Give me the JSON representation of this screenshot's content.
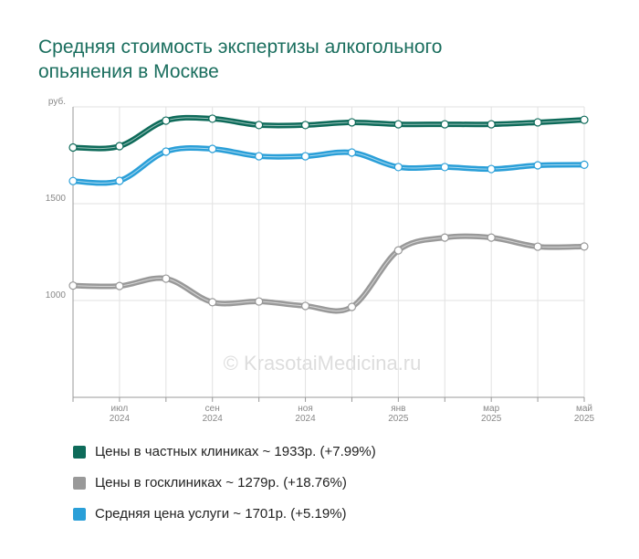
{
  "chart_data": {
    "type": "line",
    "title": "Средняя стоимость экспертизы алкогольного опьянения в Москве",
    "watermark": "© KrasotaiMedicina.ru",
    "categories": [
      null,
      [
        "июл",
        "2024"
      ],
      null,
      [
        "сен",
        "2024"
      ],
      null,
      [
        "ноя",
        "2024"
      ],
      null,
      [
        "янв",
        "2025"
      ],
      null,
      [
        "мар",
        "2025"
      ],
      null,
      [
        "май",
        "2025"
      ]
    ],
    "ylim": [
      500,
      2000
    ],
    "yticks": [
      1000,
      1500,
      {
        "value": 2000,
        "label": "руб."
      }
    ],
    "grid": true,
    "series": [
      {
        "name": "Цены в частных клиниках ~ 1933р. (+7.99%)",
        "color": "#0e6b5a",
        "values": [
          1790,
          1797,
          1929,
          1939,
          1906,
          1906,
          1920,
          1910,
          1910,
          1910,
          1920,
          1933
        ]
      },
      {
        "name": "Цены в госклиниках ~ 1279р. (+18.76%)",
        "color": "#999999",
        "values": [
          1077,
          1075,
          1113,
          991,
          995,
          972,
          967,
          1259,
          1325,
          1325,
          1278,
          1279
        ]
      },
      {
        "name": "Средняя цена услуги ~ 1701р. (+5.19%)",
        "color": "#2a9fd8",
        "values": [
          1617,
          1618,
          1769,
          1783,
          1745,
          1745,
          1764,
          1689,
          1689,
          1679,
          1698,
          1701
        ]
      }
    ]
  }
}
